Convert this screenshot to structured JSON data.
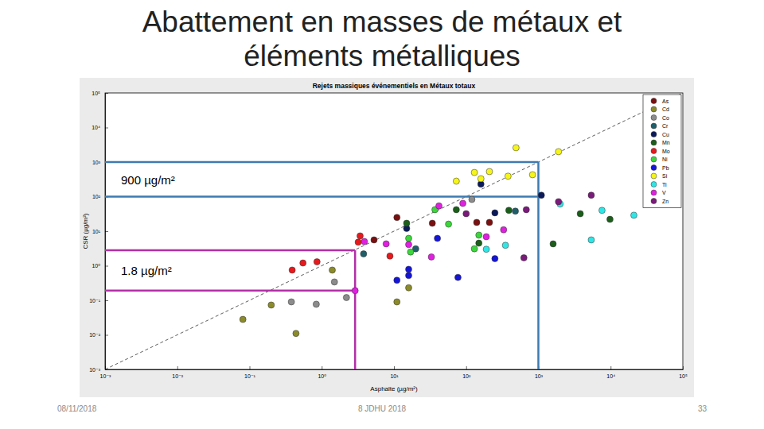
{
  "slide": {
    "title": [
      "Abattement en masses de métaux et",
      "éléments métalliques"
    ],
    "date": "08/11/2018",
    "event": "8 JDHU 2018",
    "page": 33
  },
  "chart_data": {
    "type": "scatter",
    "title": "Rejets massiques événementiels en Métaux totaux",
    "x_label": "Asphalte (µg/m²)",
    "y_label": "CSR (µg/m²)",
    "log": true,
    "marker": "circle",
    "legend": "top-right",
    "xlim": [
      0.001,
      100000
    ],
    "ylim": [
      0.001,
      100000
    ],
    "xticks": [
      {
        "value": 0.001,
        "label": "10⁻³"
      },
      {
        "value": 0.01,
        "label": "10⁻²"
      },
      {
        "value": 0.1,
        "label": "10⁻¹"
      },
      {
        "value": 1,
        "label": "10⁰"
      },
      {
        "value": 10,
        "label": "10¹"
      },
      {
        "value": 100,
        "label": "10²"
      },
      {
        "value": 1000,
        "label": "10³"
      },
      {
        "value": 10000,
        "label": "10⁴"
      },
      {
        "value": 100000,
        "label": "10⁵"
      }
    ],
    "yticks": [
      {
        "value": 0.001,
        "label": "10⁻³"
      },
      {
        "value": 0.01,
        "label": "10⁻²"
      },
      {
        "value": 0.1,
        "label": "10⁻¹"
      },
      {
        "value": 1,
        "label": "10⁰"
      },
      {
        "value": 10,
        "label": "10¹"
      },
      {
        "value": 100,
        "label": "10²"
      },
      {
        "value": 1000,
        "label": "10³"
      },
      {
        "value": 10000,
        "label": "10⁴"
      },
      {
        "value": 100000,
        "label": "10⁵"
      }
    ],
    "diagonal": {
      "x": [
        0.001,
        100000
      ],
      "y": [
        0.001,
        100000
      ],
      "line_style": "dashed"
    },
    "annotations": [
      {
        "text": "900 µg/m²",
        "color": "#3d7ab0",
        "x": 1000,
        "y": [
          1000,
          100
        ]
      },
      {
        "text": "1.8 µg/m²",
        "color": "#b32fa8",
        "x": 2.9,
        "y": [
          2.8,
          0.19
        ]
      }
    ],
    "series": [
      {
        "name": "As",
        "color": "#7a1010",
        "x": [
          11,
          5.3,
          140,
          210,
          34
        ],
        "values": [
          25,
          5.6,
          18,
          18,
          17
        ]
      },
      {
        "name": "Cd",
        "color": "#8b8b2a",
        "x": [
          0.081,
          0.2,
          0.44,
          1.4,
          11,
          16
        ],
        "values": [
          0.028,
          0.073,
          0.011,
          0.75,
          0.09,
          0.23
        ]
      },
      {
        "name": "Co",
        "color": "#8c8c8c",
        "x": [
          0.38,
          0.84,
          2.2,
          1.5,
          120
        ],
        "values": [
          0.09,
          0.077,
          0.12,
          0.34,
          83
        ]
      },
      {
        "name": "Cr",
        "color": "#1f5f6a",
        "x": [
          3.8,
          20,
          480
        ],
        "values": [
          2.2,
          3.1,
          38
        ]
      },
      {
        "name": "Cu",
        "color": "#0a1a5a",
        "x": [
          15,
          160,
          1100,
          250
        ],
        "values": [
          12,
          230,
          110,
          34
        ]
      },
      {
        "name": "Mn",
        "color": "#1a5e1a",
        "x": [
          15,
          73,
          390,
          3800,
          9800,
          1600,
          150
        ],
        "values": [
          17,
          42,
          40,
          32,
          22,
          4.3,
          4.5
        ]
      },
      {
        "name": "Mo",
        "color": "#e8191c",
        "x": [
          0.39,
          0.55,
          0.86,
          3.4,
          8.8,
          3.2
        ],
        "values": [
          0.75,
          1.2,
          1.3,
          7.3,
          1.9,
          4.8
        ]
      },
      {
        "name": "Ni",
        "color": "#3cd63c",
        "x": [
          37,
          57,
          16,
          150,
          130,
          17
        ],
        "values": [
          42,
          16,
          6.2,
          7.7,
          3.1,
          2.5
        ]
      },
      {
        "name": "Pb",
        "color": "#1515d8",
        "x": [
          11,
          16,
          77,
          250,
          40,
          16
        ],
        "values": [
          0.38,
          0.52,
          0.46,
          1.6,
          6.2,
          0.79
        ]
      },
      {
        "name": "Si",
        "color": "#f5f51a",
        "x": [
          73,
          130,
          160,
          210,
          380,
          490,
          830,
          1900
        ],
        "values": [
          280,
          500,
          330,
          530,
          390,
          2600,
          430,
          2000
        ]
      },
      {
        "name": "Ti",
        "color": "#2ee6e6",
        "x": [
          350,
          190,
          2000,
          5400,
          7600,
          21000
        ],
        "values": [
          3.9,
          3,
          61,
          5.6,
          40,
          29
        ]
      },
      {
        "name": "V",
        "color": "#e020e0",
        "x": [
          3.9,
          7.8,
          16,
          33,
          42,
          90,
          330,
          190,
          2.9
        ],
        "values": [
          5,
          4.3,
          4.1,
          1.8,
          54,
          64,
          11,
          6.9,
          0.19
        ]
      },
      {
        "name": "Zn",
        "color": "#7a1a7a",
        "x": [
          1900,
          5400,
          630,
          100,
          680
        ],
        "values": [
          71,
          110,
          1.7,
          32,
          42
        ]
      }
    ]
  }
}
